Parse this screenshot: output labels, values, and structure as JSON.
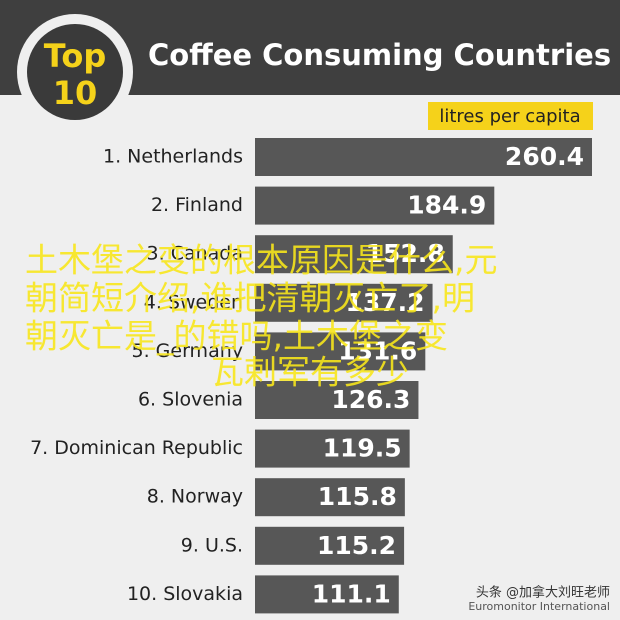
{
  "chart_data": {
    "type": "bar",
    "orientation": "horizontal",
    "logo": {
      "top": "Top",
      "number": "10"
    },
    "title": "Coffee Consuming Countries",
    "subtitle": "litres per capita",
    "categories": [
      "1. Netherlands",
      "2. Finland",
      "3. Canada",
      "4. Sweden",
      "5. Germany",
      "6. Slovenia",
      "7. Dominican Republic",
      "8. Norway",
      "9. U.S.",
      "10. Slovakia"
    ],
    "values": [
      260.4,
      184.9,
      152.8,
      137.2,
      131.6,
      126.3,
      119.5,
      115.8,
      115.2,
      111.1
    ],
    "color": "#575757",
    "source": "Euromonitor International",
    "watermark": "头条 @加拿大刘旺老师",
    "overlay": [
      "土木堡之变的根本原因是什么,元",
      "朝简短介绍,谁把清朝灭亡了,明",
      "朝灭亡是_的错吗,土木堡之变",
      "瓦剌军有多少"
    ]
  }
}
